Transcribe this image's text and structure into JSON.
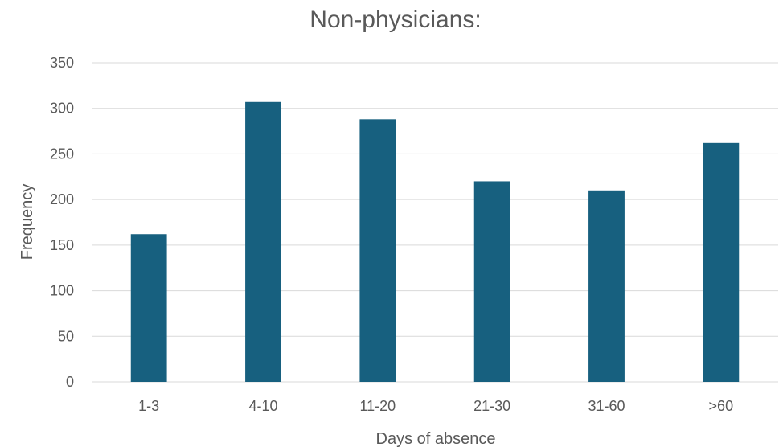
{
  "chart_data": {
    "type": "bar",
    "title": "Non-physicians:",
    "xlabel": "Days of absence",
    "ylabel": "Frequency",
    "categories": [
      "1-3",
      "4-10",
      "11-20",
      "21-30",
      "31-60",
      ">60"
    ],
    "values": [
      162,
      307,
      288,
      220,
      210,
      262
    ],
    "ylim": [
      0,
      350
    ],
    "yticks": [
      0,
      50,
      100,
      150,
      200,
      250,
      300,
      350
    ],
    "grid": true,
    "bar_color": "#17607f"
  }
}
